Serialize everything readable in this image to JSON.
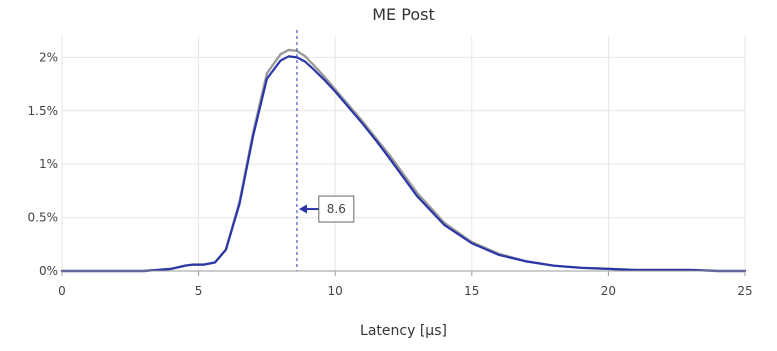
{
  "chart_data": {
    "type": "line",
    "title": "ME Post",
    "xlabel": "Latency [µs]",
    "ylabel": "",
    "xlim": [
      0,
      25
    ],
    "ylim": [
      0,
      0.022
    ],
    "grid": true,
    "legend": "none",
    "x_ticks": [
      0,
      5,
      10,
      15,
      20,
      25
    ],
    "x_tick_labels": [
      "0",
      "5",
      "10",
      "15",
      "20",
      "25"
    ],
    "y_ticks": [
      0,
      0.005,
      0.01,
      0.015,
      0.02
    ],
    "y_tick_labels": [
      "0%",
      "0.5%",
      "1%",
      "1.5%",
      "2%"
    ],
    "series": [
      {
        "color": "#9a9a9a",
        "x": [
          0,
          1,
          2,
          3,
          3.5,
          4,
          4.5,
          4.8,
          5.2,
          5.6,
          6,
          6.5,
          7,
          7.5,
          8,
          8.3,
          8.6,
          8.9,
          9.2,
          9.6,
          10,
          10.5,
          11,
          11.5,
          12,
          13,
          14,
          15,
          16,
          17,
          18,
          19,
          20,
          21,
          22,
          23,
          24,
          25
        ],
        "y": [
          0,
          0,
          0,
          0,
          0.0001,
          0.0002,
          0.0005,
          0.0006,
          0.0006,
          0.0008,
          0.002,
          0.0065,
          0.013,
          0.0185,
          0.0203,
          0.0207,
          0.0206,
          0.0201,
          0.0193,
          0.0182,
          0.017,
          0.0155,
          0.014,
          0.0124,
          0.0108,
          0.0073,
          0.0045,
          0.0027,
          0.0016,
          0.0009,
          0.0005,
          0.0003,
          0.0002,
          0.0001,
          0.0001,
          0.0001,
          0,
          0
        ]
      },
      {
        "color": "#2a35a8",
        "x": [
          0,
          1,
          2,
          3,
          3.5,
          4,
          4.5,
          4.8,
          5.2,
          5.6,
          6,
          6.5,
          7,
          7.5,
          8,
          8.3,
          8.6,
          8.9,
          9.2,
          9.6,
          10,
          10.5,
          11,
          11.5,
          12,
          13,
          14,
          15,
          16,
          17,
          18,
          19,
          20,
          21,
          22,
          23,
          24,
          25
        ],
        "y": [
          0,
          0,
          0,
          0,
          0.0001,
          0.0002,
          0.0005,
          0.0006,
          0.0006,
          0.0008,
          0.002,
          0.0063,
          0.0127,
          0.018,
          0.0197,
          0.0201,
          0.02,
          0.0196,
          0.0189,
          0.0179,
          0.0168,
          0.0153,
          0.0138,
          0.0122,
          0.0105,
          0.007,
          0.0043,
          0.0026,
          0.0015,
          0.0009,
          0.0005,
          0.0003,
          0.0002,
          0.0001,
          0.0001,
          0.0001,
          0,
          0
        ]
      }
    ],
    "marker_line": {
      "x": 8.6,
      "color": "#2a35a8"
    },
    "annotation": {
      "label": "8.6",
      "x": 9.4,
      "y": 0.0058
    },
    "colors": {
      "grid": "#e6e6e6",
      "axis": "#999999"
    }
  }
}
